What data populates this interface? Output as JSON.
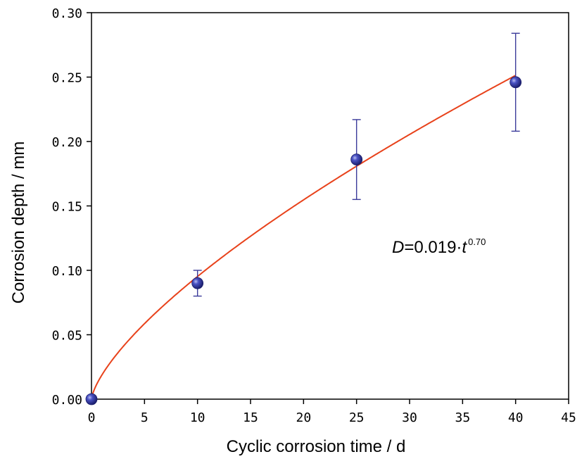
{
  "chart_data": {
    "type": "scatter",
    "title": "",
    "xlabel": "Cyclic corrosion time / d",
    "ylabel": "Corrosion depth / mm",
    "xlim": [
      0,
      45
    ],
    "ylim": [
      0,
      0.3
    ],
    "x_ticks": [
      "0",
      "5",
      "10",
      "15",
      "20",
      "25",
      "30",
      "35",
      "40",
      "45"
    ],
    "y_ticks": [
      "0.00",
      "0.05",
      "0.10",
      "0.15",
      "0.20",
      "0.25",
      "0.30"
    ],
    "grid": false,
    "series": [
      {
        "x": [
          0,
          10,
          25,
          40
        ],
        "y": [
          0.0,
          0.09,
          0.186,
          0.246
        ],
        "error_low": [
          0.0,
          0.08,
          0.155,
          0.208
        ],
        "error_high": [
          0.0,
          0.1,
          0.217,
          0.284
        ],
        "marker": "sphere",
        "color": "#2e3192",
        "error_color": "#3b3b9a"
      }
    ],
    "fit": {
      "model": "power",
      "coefficient": 0.019,
      "exponent": 0.7,
      "color": "#e8421b",
      "label_main": "D=0.019·t",
      "label_var_d": "D",
      "label_mid": "=0.019·",
      "label_var_t": "t",
      "label_exp": "0.70"
    }
  }
}
